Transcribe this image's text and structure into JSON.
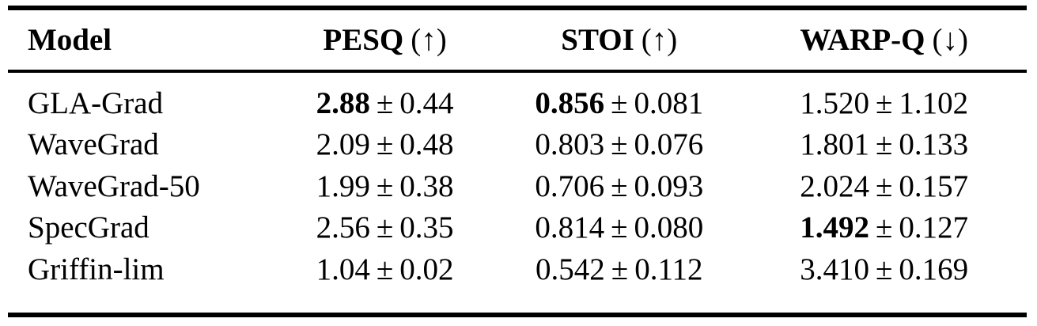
{
  "table": {
    "pm": "±",
    "columns": [
      {
        "name": "Model",
        "direction": ""
      },
      {
        "name": "PESQ",
        "direction": "(↑)"
      },
      {
        "name": "STOI",
        "direction": "(↑)"
      },
      {
        "name": "WARP-Q",
        "direction": "(↓)"
      }
    ],
    "rows": [
      {
        "model": "GLA-Grad",
        "pesq": {
          "mean": "2.88",
          "std": "0.44",
          "bold": true
        },
        "stoi": {
          "mean": "0.856",
          "std": "0.081",
          "bold": true
        },
        "warpq": {
          "mean": "1.520",
          "std": "1.102",
          "bold": false
        }
      },
      {
        "model": "WaveGrad",
        "pesq": {
          "mean": "2.09",
          "std": "0.48",
          "bold": false
        },
        "stoi": {
          "mean": "0.803",
          "std": "0.076",
          "bold": false
        },
        "warpq": {
          "mean": "1.801",
          "std": "0.133",
          "bold": false
        }
      },
      {
        "model": "WaveGrad-50",
        "pesq": {
          "mean": "1.99",
          "std": "0.38",
          "bold": false
        },
        "stoi": {
          "mean": "0.706",
          "std": "0.093",
          "bold": false
        },
        "warpq": {
          "mean": "2.024",
          "std": "0.157",
          "bold": false
        }
      },
      {
        "model": "SpecGrad",
        "pesq": {
          "mean": "2.56",
          "std": "0.35",
          "bold": false
        },
        "stoi": {
          "mean": "0.814",
          "std": "0.080",
          "bold": false
        },
        "warpq": {
          "mean": "1.492",
          "std": "0.127",
          "bold": true
        }
      },
      {
        "model": "Griffin-lim",
        "pesq": {
          "mean": "1.04",
          "std": "0.02",
          "bold": false
        },
        "stoi": {
          "mean": "0.542",
          "std": "0.112",
          "bold": false
        },
        "warpq": {
          "mean": "3.410",
          "std": "0.169",
          "bold": false
        }
      }
    ]
  },
  "chart_data": {
    "type": "table",
    "title": "",
    "columns": [
      "Model",
      "PESQ (↑)",
      "STOI (↑)",
      "WARP-Q (↓)"
    ],
    "rows": [
      [
        "GLA-Grad",
        "2.88 ± 0.44",
        "0.856 ± 0.081",
        "1.520 ± 1.102"
      ],
      [
        "WaveGrad",
        "2.09 ± 0.48",
        "0.803 ± 0.076",
        "1.801 ± 0.133"
      ],
      [
        "WaveGrad-50",
        "1.99 ± 0.38",
        "0.706 ± 0.093",
        "2.024 ± 0.157"
      ],
      [
        "SpecGrad",
        "2.56 ± 0.35",
        "0.814 ± 0.080",
        "1.492 ± 0.127"
      ],
      [
        "Griffin-lim",
        "1.04 ± 0.02",
        "0.542 ± 0.112",
        "3.410 ± 0.169"
      ]
    ],
    "bold_cells": [
      [
        "GLA-Grad",
        "PESQ mean 2.88"
      ],
      [
        "GLA-Grad",
        "STOI mean 0.856"
      ],
      [
        "SpecGrad",
        "WARP-Q mean 1.492"
      ]
    ],
    "series": [
      {
        "name": "PESQ mean",
        "values": [
          2.88,
          2.09,
          1.99,
          2.56,
          1.04
        ]
      },
      {
        "name": "PESQ std",
        "values": [
          0.44,
          0.48,
          0.38,
          0.35,
          0.02
        ]
      },
      {
        "name": "STOI mean",
        "values": [
          0.856,
          0.803,
          0.706,
          0.814,
          0.542
        ]
      },
      {
        "name": "STOI std",
        "values": [
          0.081,
          0.076,
          0.093,
          0.08,
          0.112
        ]
      },
      {
        "name": "WARP-Q mean",
        "values": [
          1.52,
          1.801,
          2.024,
          1.492,
          3.41
        ]
      },
      {
        "name": "WARP-Q std",
        "values": [
          1.102,
          0.133,
          0.157,
          0.127,
          0.169
        ]
      }
    ],
    "categories": [
      "GLA-Grad",
      "WaveGrad",
      "WaveGrad-50",
      "SpecGrad",
      "Griffin-lim"
    ]
  }
}
